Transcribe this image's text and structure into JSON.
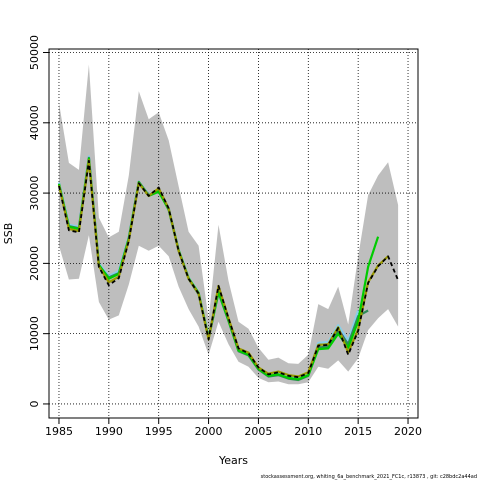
{
  "chart_data": {
    "type": "line",
    "title": "",
    "xlabel": "Years",
    "ylabel": "SSB",
    "xlim": [
      1984,
      2021
    ],
    "ylim": [
      -2000,
      50500
    ],
    "xticks": [
      1985,
      1990,
      1995,
      2000,
      2005,
      2010,
      2015,
      2020
    ],
    "yticks": [
      0,
      10000,
      20000,
      30000,
      40000,
      50000
    ],
    "grid": true,
    "legend": "none",
    "footer_note": "stockassessment.org, whiting_6a_benchmark_2021_FC1c, r13873 , git: c28bdc2a44ad",
    "colors": {
      "band": "#bebebe",
      "retro": [
        "#1a1a8c",
        "#87ceeb",
        "#2e8b57",
        "#00cc00",
        "#9a9a00"
      ],
      "base": "#000000"
    },
    "x": [
      1985,
      1986,
      1987,
      1988,
      1989,
      1990,
      1991,
      1992,
      1993,
      1994,
      1995,
      1996,
      1997,
      1998,
      1999,
      2000,
      2001,
      2002,
      2003,
      2004,
      2005,
      2006,
      2007,
      2008,
      2009,
      2010,
      2011,
      2012,
      2013,
      2014,
      2015,
      2016,
      2017,
      2018,
      2019
    ],
    "confidence_band": {
      "upper": [
        42800,
        34300,
        33300,
        48300,
        26500,
        23700,
        24500,
        32500,
        44500,
        40500,
        41500,
        37500,
        31000,
        24500,
        22500,
        12000,
        25500,
        17500,
        11700,
        10700,
        8000,
        6300,
        6600,
        5800,
        5700,
        7000,
        14200,
        13500,
        16700,
        11300,
        21000,
        29700,
        32500,
        34400,
        28300
      ],
      "lower": [
        22500,
        17700,
        17800,
        24000,
        14500,
        12000,
        12600,
        17000,
        22500,
        21800,
        22500,
        21000,
        16700,
        13500,
        11000,
        7000,
        11700,
        8500,
        6000,
        5300,
        3700,
        3100,
        3200,
        2800,
        2800,
        3100,
        5300,
        5000,
        6200,
        4600,
        6500,
        10500,
        12200,
        13500,
        11000
      ]
    },
    "series": [
      {
        "name": "",
        "x": [
          1985,
          1986,
          1987,
          1988,
          1989,
          1990,
          1991,
          1992,
          1993,
          1994,
          1995,
          1996,
          1997,
          1998,
          1999,
          2000,
          2001,
          2002,
          2003,
          2004,
          2005,
          2006,
          2007,
          2008,
          2009,
          2010,
          2011,
          2012,
          2013,
          2014,
          2015,
          2016,
          2017,
          2018,
          2019
        ],
        "values": [
          31000,
          24700,
          24400,
          34600,
          19500,
          16900,
          17900,
          23200,
          31400,
          29600,
          30800,
          27800,
          21800,
          17800,
          15700,
          9200,
          16800,
          12200,
          7900,
          7200,
          5200,
          4200,
          4500,
          4000,
          3800,
          4400,
          8300,
          8400,
          10800,
          7000,
          10400,
          17200,
          19600,
          21000,
          17600
        ],
        "style": "dashed"
      },
      {
        "name": "",
        "x": [
          1985,
          1986,
          1987,
          1988,
          1989,
          1990,
          1991,
          1992,
          1993,
          1994,
          1995,
          1996,
          1997,
          1998,
          1999,
          2000,
          2001,
          2002,
          2003,
          2004,
          2005,
          2006,
          2007,
          2008,
          2009,
          2010,
          2011,
          2012,
          2013,
          2014,
          2015,
          2016,
          2017,
          2018
        ],
        "values": [
          31100,
          24900,
          24600,
          34700,
          19600,
          17300,
          18100,
          23300,
          31400,
          29600,
          30700,
          27800,
          21800,
          17800,
          15700,
          9200,
          16800,
          12200,
          7900,
          7300,
          5200,
          4300,
          4600,
          4100,
          3900,
          4500,
          8400,
          8500,
          10900,
          7300,
          10600,
          17300,
          19700,
          21000
        ]
      },
      {
        "name": "",
        "x": [
          1985,
          1986,
          1987,
          1988,
          1989,
          1990,
          1991,
          1992,
          1993,
          1994,
          1995,
          1996,
          1997,
          1998,
          1999,
          2000,
          2001,
          2002,
          2003,
          2004,
          2005,
          2006,
          2007,
          2008,
          2009,
          2010,
          2011,
          2012,
          2013,
          2014,
          2015,
          2016,
          2017
        ],
        "values": [
          31300,
          25200,
          24900,
          34900,
          19800,
          17800,
          18500,
          23500,
          31500,
          29600,
          30200,
          27700,
          21900,
          17900,
          15800,
          9400,
          16000,
          11900,
          7600,
          7000,
          5000,
          4000,
          4200,
          3700,
          3500,
          4100,
          7800,
          7900,
          10000,
          8000,
          11800,
          19500,
          23800
        ]
      },
      {
        "name": "",
        "x": [
          1985,
          1986,
          1987,
          1988,
          1989,
          1990,
          1991,
          1992,
          1993,
          1994,
          1995,
          1996,
          1997,
          1998,
          1999,
          2000,
          2001,
          2002,
          2003,
          2004,
          2005,
          2006,
          2007,
          2008,
          2009,
          2010,
          2011,
          2012,
          2013,
          2014,
          2015,
          2016
        ],
        "values": [
          31200,
          25300,
          25000,
          35000,
          19700,
          18000,
          18600,
          23600,
          31600,
          29700,
          30300,
          27600,
          21800,
          17800,
          15600,
          9300,
          15800,
          11800,
          7500,
          6900,
          4900,
          3900,
          4100,
          3600,
          3400,
          4000,
          8000,
          8200,
          10400,
          8500,
          12500,
          13300
        ]
      },
      {
        "name": "",
        "x": [
          1985,
          1986,
          1987,
          1988,
          1989,
          1990,
          1991,
          1992,
          1993,
          1994,
          1995,
          1996,
          1997,
          1998,
          1999,
          2000,
          2001,
          2002,
          2003,
          2004,
          2005,
          2006,
          2007,
          2008,
          2009,
          2010,
          2011,
          2012,
          2013,
          2014,
          2015
        ],
        "values": [
          31500,
          25500,
          25200,
          35200,
          20000,
          18200,
          18900,
          23800,
          31600,
          29800,
          30400,
          27900,
          22000,
          18000,
          15900,
          9500,
          16200,
          12000,
          7700,
          7100,
          5100,
          4100,
          4300,
          3900,
          3700,
          4300,
          8700,
          8800,
          11200,
          9000,
          13300
        ]
      },
      {
        "name": "",
        "x": [
          1985,
          1986,
          1987,
          1988,
          1989,
          1990,
          1991,
          1992,
          1993,
          1994,
          1995,
          1996,
          1997,
          1998,
          1999,
          2000,
          2001,
          2002,
          2003,
          2004,
          2005,
          2006,
          2007,
          2008,
          2009,
          2010,
          2011,
          2012,
          2013,
          2014
        ],
        "values": [
          31400,
          25400,
          25100,
          35100,
          19900,
          18100,
          18800,
          23700,
          31500,
          29700,
          30300,
          27800,
          21900,
          17900,
          15800,
          9400,
          16100,
          11900,
          7600,
          7000,
          5000,
          4000,
          4200,
          3800,
          3600,
          4200,
          8600,
          8700,
          11100,
          8800
        ]
      }
    ]
  }
}
